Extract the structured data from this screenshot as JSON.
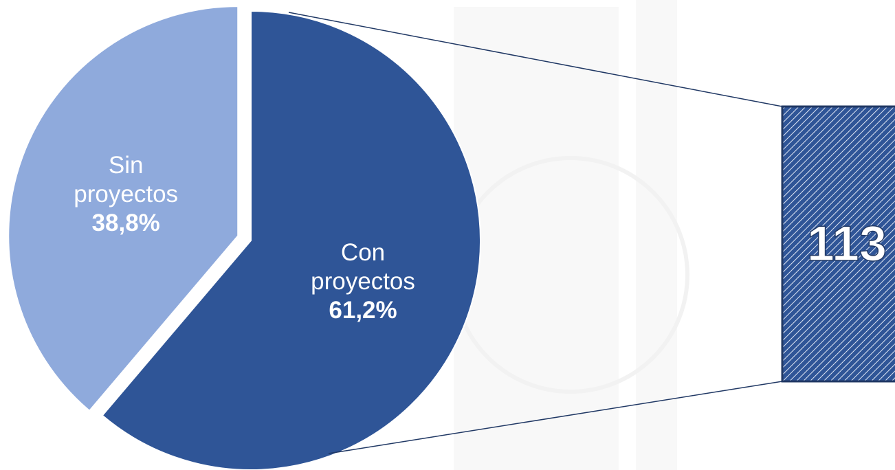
{
  "chart_data": {
    "type": "pie",
    "categories": [
      "Con proyectos",
      "Sin proyectos"
    ],
    "values": [
      61.2,
      38.8
    ],
    "value_labels": [
      "61,2%",
      "38,8%"
    ],
    "colors": [
      "#2f5597",
      "#8faadc"
    ],
    "callout": 113
  }
}
